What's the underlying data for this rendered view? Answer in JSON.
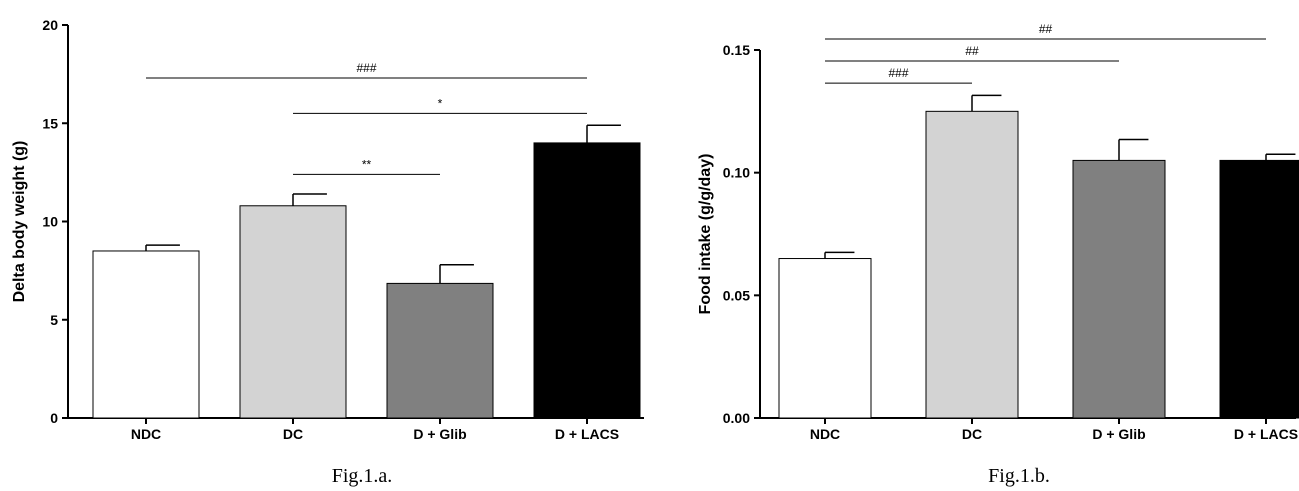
{
  "chart_data": [
    {
      "type": "bar",
      "caption": "Fig.1.a.",
      "ylabel": "Delta body weight (g)",
      "xlabel": "",
      "ylim": [
        0,
        20
      ],
      "yticks": [
        "0",
        "5",
        "10",
        "15",
        "20"
      ],
      "categories": [
        "NDC",
        "DC",
        "D + Glib",
        "D + LACS"
      ],
      "values": [
        8.5,
        10.8,
        6.85,
        14.0
      ],
      "errors": [
        0.3,
        0.6,
        0.95,
        0.9
      ],
      "colors": [
        "#ffffff",
        "#d3d3d3",
        "#808080",
        "#000000"
      ],
      "significance": [
        {
          "from": 0,
          "to": 3,
          "y": 17.3,
          "label": "###"
        },
        {
          "from": 1,
          "to": 3,
          "y": 15.5,
          "label": "*"
        },
        {
          "from": 1,
          "to": 2,
          "y": 12.4,
          "label": "**"
        }
      ]
    },
    {
      "type": "bar",
      "caption": "Fig.1.b.",
      "ylabel": "Food intake (g/g/day)",
      "xlabel": "",
      "ylim": [
        0,
        0.15
      ],
      "yticks": [
        "0.00",
        "0.05",
        "0.10",
        "0.15"
      ],
      "categories": [
        "NDC",
        "DC",
        "D + Glib",
        "D + LACS"
      ],
      "values": [
        0.065,
        0.125,
        0.105,
        0.105
      ],
      "errors": [
        0.0025,
        0.0065,
        0.0085,
        0.0025
      ],
      "colors": [
        "#ffffff",
        "#d3d3d3",
        "#808080",
        "#000000"
      ],
      "significance": [
        {
          "from": 0,
          "to": 3,
          "y": 0.1545,
          "label": "##"
        },
        {
          "from": 0,
          "to": 2,
          "y": 0.1455,
          "label": "##"
        },
        {
          "from": 0,
          "to": 1,
          "y": 0.1365,
          "label": "###"
        }
      ]
    }
  ]
}
